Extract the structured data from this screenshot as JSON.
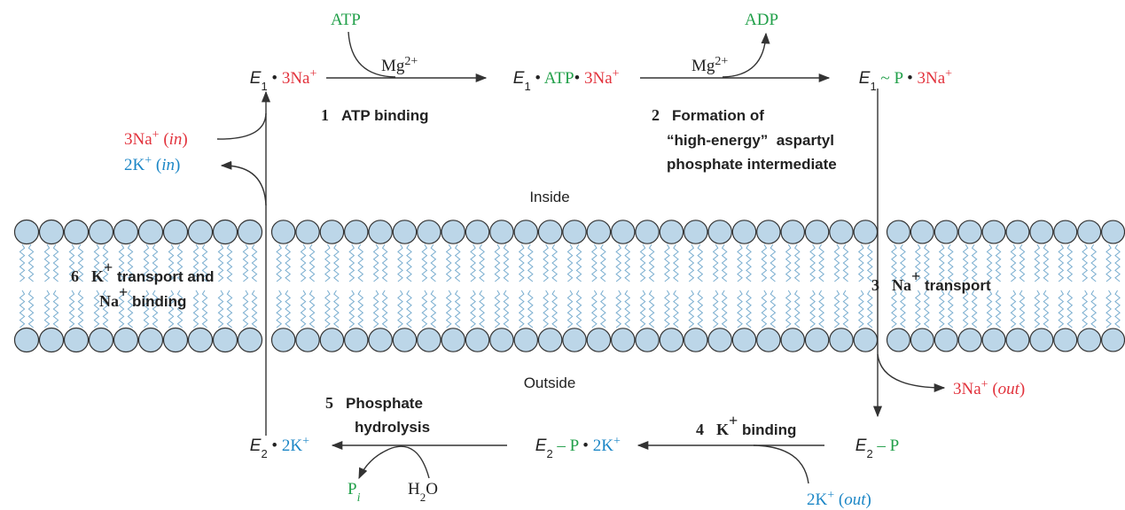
{
  "labels": {
    "inside": "Inside",
    "outside": "Outside"
  },
  "states": [
    [
      "E",
      "1",
      " • ",
      "3Na",
      "+"
    ],
    [
      "E",
      "1",
      " • ",
      "ATP",
      "• ",
      "3Na",
      "+"
    ],
    [
      "E",
      "1",
      " ~ ",
      "P",
      " • ",
      "3Na",
      "+"
    ],
    [
      "E",
      "2",
      " – ",
      "P"
    ],
    [
      "E",
      "2",
      " – ",
      "P",
      " • ",
      "2K",
      "+"
    ],
    [
      "E",
      "2",
      " • ",
      "2K",
      "+"
    ]
  ],
  "reagents": {
    "atp": [
      "ATP"
    ],
    "mg_1": [
      "Mg",
      "2+"
    ],
    "mg_2": [
      "Mg",
      "2+"
    ],
    "adp": [
      "ADP"
    ],
    "na_in": [
      "3Na",
      "+",
      " (",
      "in",
      ")"
    ],
    "k_in": [
      "2K",
      "+",
      " (",
      "in",
      ")"
    ],
    "na_out": [
      "3Na",
      "+",
      " (",
      "out",
      ")"
    ],
    "k_out": [
      "2K",
      "+",
      " (",
      "out",
      ")"
    ],
    "pi": [
      "P",
      "i"
    ],
    "h2o": [
      "H",
      "2",
      "O"
    ]
  },
  "steps": [
    {
      "number": "1",
      "lines": [
        [
          "ATP binding"
        ]
      ]
    },
    {
      "number": "2",
      "lines": [
        [
          "Formation of"
        ],
        [
          "“high-energy”  aspartyl"
        ],
        [
          "phosphate intermediate"
        ]
      ]
    },
    {
      "number": "3",
      "lines": [
        [
          "Na",
          "+",
          " transport"
        ]
      ]
    },
    {
      "number": "4",
      "lines": [
        [
          "K",
          "+",
          " binding"
        ]
      ]
    },
    {
      "number": "5",
      "lines": [
        [
          "Phosphate"
        ],
        [
          "hydrolysis"
        ]
      ]
    },
    {
      "number": "6",
      "lines": [
        [
          "K",
          "+",
          " transport and"
        ],
        [
          "Na",
          "+",
          " binding"
        ]
      ]
    }
  ]
}
